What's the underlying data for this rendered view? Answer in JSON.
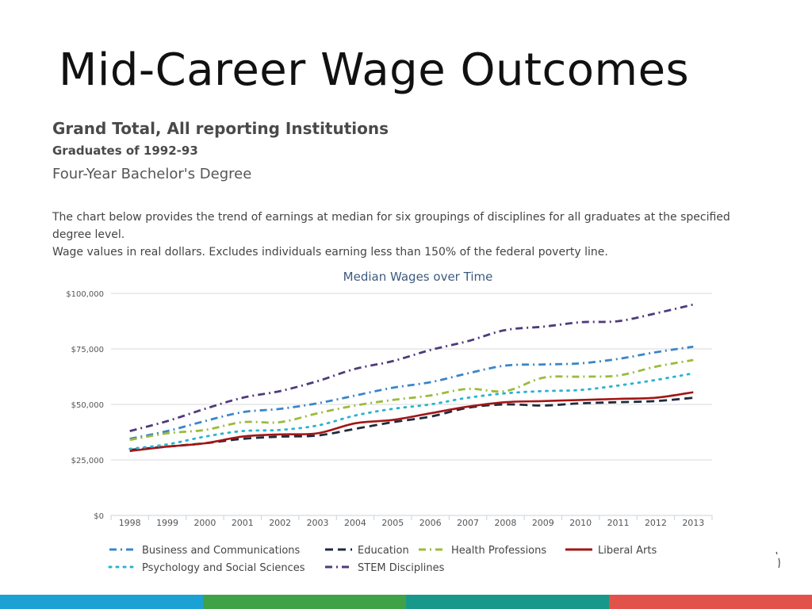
{
  "slide": {
    "title": "Mid-Career Wage Outcomes"
  },
  "header": {
    "line1": "Grand Total, All reporting Institutions",
    "line2": "Graduates of 1992-93",
    "line3": "Four-Year Bachelor's Degree"
  },
  "description": {
    "line1": "The chart below provides the trend of earnings at median for six groupings of disciplines for all graduates at the specified",
    "line2": "degree level.",
    "line3": "Wage values in real dollars. Excludes individuals earning less than 150% of the federal poverty line."
  },
  "footer_colors": [
    "#1ba1d4",
    "#3fa246",
    "#17988a",
    "#e0524a"
  ],
  "chart_data": {
    "type": "line",
    "title": "Median Wages over Time",
    "xlabel": "",
    "ylabel": "",
    "x": [
      "1998",
      "1999",
      "2000",
      "2001",
      "2002",
      "2003",
      "2004",
      "2005",
      "2006",
      "2007",
      "2008",
      "2009",
      "2010",
      "2011",
      "2012",
      "2013"
    ],
    "ylim": [
      0,
      100000
    ],
    "y_ticks": [
      0,
      25000,
      50000,
      75000,
      100000
    ],
    "y_tick_labels": [
      "$0",
      "$25,000",
      "$50,000",
      "$75,000",
      "$100,000"
    ],
    "grid": "horizontal",
    "legend_position": "bottom",
    "series": [
      {
        "name": "Business and Communications",
        "color": "#3a86c8",
        "style": "dashdot",
        "values": [
          34500,
          38000,
          42500,
          46500,
          48000,
          50500,
          54000,
          57500,
          60000,
          64000,
          67500,
          68000,
          68500,
          70500,
          73500,
          76000
        ]
      },
      {
        "name": "Education",
        "color": "#1e2b3c",
        "style": "dash",
        "values": [
          29500,
          31000,
          32500,
          34500,
          35500,
          36000,
          39000,
          42000,
          44500,
          48500,
          50000,
          49500,
          50500,
          51000,
          51500,
          53000
        ]
      },
      {
        "name": "Health Professions",
        "color": "#9bbb3c",
        "style": "dashdot",
        "values": [
          34000,
          37000,
          38500,
          42000,
          42000,
          46000,
          49500,
          52000,
          54000,
          57000,
          56000,
          62000,
          62500,
          63000,
          67000,
          70000
        ]
      },
      {
        "name": "Liberal Arts",
        "color": "#a31515",
        "style": "solid",
        "values": [
          29000,
          31000,
          32500,
          35500,
          36500,
          37000,
          41500,
          43000,
          46000,
          49000,
          51000,
          51500,
          52000,
          52500,
          53000,
          55500
        ]
      },
      {
        "name": "Psychology and Social Sciences",
        "color": "#28b4cf",
        "style": "dot",
        "values": [
          30000,
          32000,
          35500,
          38000,
          38500,
          40500,
          45000,
          48000,
          50000,
          53000,
          55000,
          56000,
          56500,
          58500,
          61000,
          64000
        ]
      },
      {
        "name": "STEM Disciplines",
        "color": "#4e3b7a",
        "style": "dashdot",
        "values": [
          38000,
          42500,
          48000,
          53000,
          56000,
          60500,
          66000,
          69500,
          74500,
          78500,
          83500,
          85000,
          87000,
          87500,
          91000,
          95000
        ]
      }
    ]
  }
}
